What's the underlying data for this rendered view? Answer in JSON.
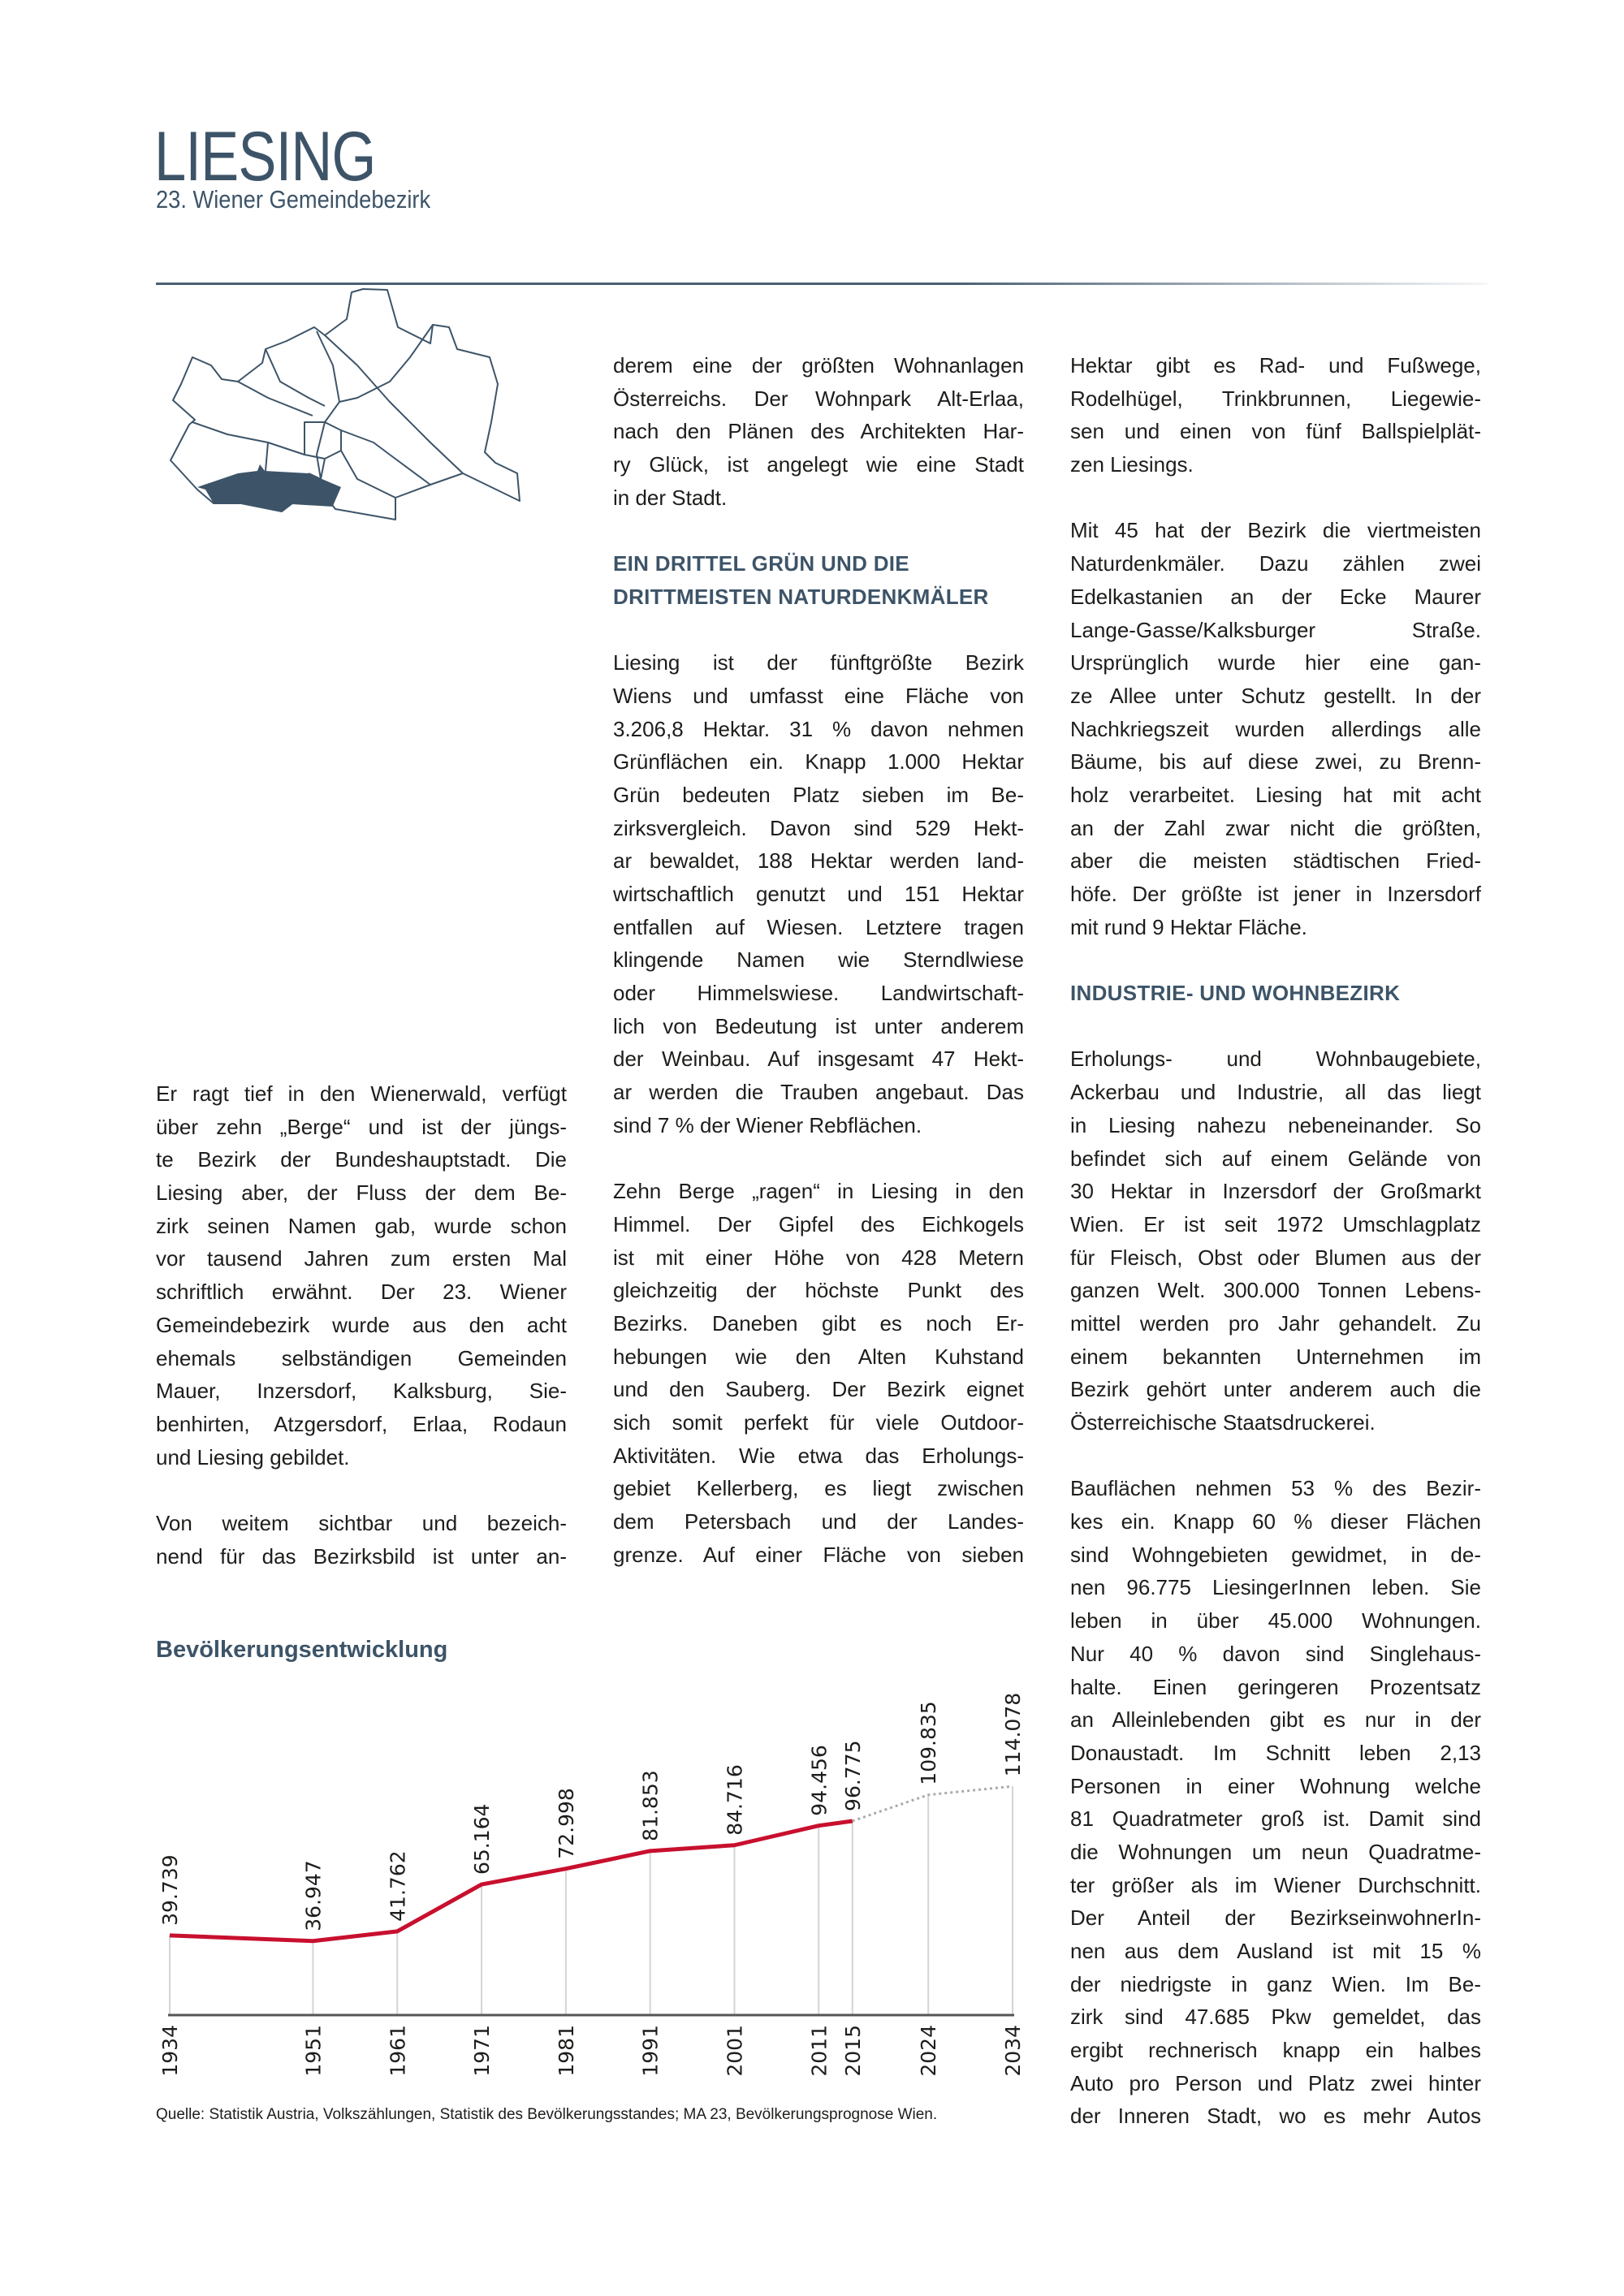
{
  "header": {
    "title": "LIESING",
    "subtitle": "23. Wiener Gemeindebezirk"
  },
  "colors": {
    "accent": "#3d5468",
    "line": "#c8102e",
    "projection": "#aaaaaa",
    "map_highlight": "#3d5468"
  },
  "columns": [
    {
      "blocks": [
        {
          "type": "para",
          "lines": [
            "Er ragt tief in den Wienerwald, verfügt",
            "über zehn „Berge“ und ist der jüngs-",
            "te Bezirk der Bundeshauptstadt. Die",
            "Liesing aber, der Fluss der dem Be-",
            "zirk seinen Namen gab, wurde schon",
            "vor tausend Jahren zum ersten Mal",
            "schriftlich erwähnt. Der 23. Wiener",
            "Gemeindebezirk wurde aus den acht",
            "ehemals selbständigen Gemeinden",
            "Mauer, Inzersdorf, Kalksburg, Sie-",
            "benhirten, Atzgersdorf, Erlaa, Rodaun",
            "und Liesing gebildet."
          ]
        },
        {
          "type": "para",
          "lines": [
            "Von weitem sichtbar und bezeich-",
            "nend für das Bezirksbild ist unter an-"
          ]
        }
      ]
    },
    {
      "blocks": [
        {
          "type": "para",
          "lines": [
            "derem eine der größten Wohnanlagen",
            "Österreichs. Der Wohnpark Alt-Erlaa,",
            "nach den Plänen des Architekten Har-",
            "ry Glück, ist angelegt wie eine Stadt",
            "in der Stadt."
          ]
        },
        {
          "type": "heading",
          "lines": [
            "EIN DRITTEL GRÜN UND DIE",
            "DRITTMEISTEN NATURDENKMÄLER"
          ]
        },
        {
          "type": "para",
          "lines": [
            "Liesing ist der fünftgrößte Bezirk",
            "Wiens und umfasst eine Fläche von",
            "3.206,8 Hektar. 31 % davon nehmen",
            "Grünflächen ein. Knapp 1.000 Hektar",
            "Grün bedeuten Platz sieben im Be-",
            "zirksvergleich. Davon sind 529 Hekt-",
            "ar bewaldet, 188 Hektar werden land-",
            "wirtschaftlich genutzt und 151 Hektar",
            "entfallen auf Wiesen. Letztere tragen",
            "klingende Namen wie Sterndlwiese",
            "oder Himmelswiese. Landwirtschaft-",
            "lich von Bedeutung ist unter anderem",
            "der Weinbau. Auf insgesamt 47 Hekt-",
            "ar werden die Trauben angebaut. Das",
            "sind 7 % der Wiener Rebflächen."
          ]
        },
        {
          "type": "para",
          "lines": [
            "Zehn Berge „ragen“ in Liesing in den",
            "Himmel. Der Gipfel des Eichkogels",
            "ist mit einer Höhe von 428 Metern",
            "gleichzeitig der höchste Punkt des",
            "Bezirks. Daneben gibt es noch Er-",
            "hebungen wie den Alten Kuhstand",
            "und den Sauberg. Der Bezirk eignet",
            "sich somit perfekt für viele Outdoor-",
            "Aktivitäten. Wie etwa das Erholungs-",
            "gebiet Kellerberg, es liegt zwischen",
            "dem Petersbach und der Landes-",
            "grenze. Auf einer Fläche von sieben"
          ]
        }
      ]
    },
    {
      "blocks": [
        {
          "type": "para",
          "lines": [
            "Hektar gibt es Rad- und Fußwege,",
            "Rodelhügel, Trinkbrunnen, Liegewie-",
            "sen und einen von fünf Ballspielplät-",
            "zen Liesings."
          ]
        },
        {
          "type": "para",
          "lines": [
            "Mit 45 hat der Bezirk die viertmeisten",
            "Naturdenkmäler. Dazu zählen zwei",
            "Edelkastanien an der Ecke Maurer",
            "Lange-Gasse/Kalksburger Straße.",
            "Ursprünglich wurde hier eine gan-",
            "ze Allee unter Schutz gestellt. In der",
            "Nachkriegszeit wurden allerdings alle",
            "Bäume, bis auf diese zwei, zu Brenn-",
            "holz verarbeitet. Liesing hat mit acht",
            "an der Zahl zwar nicht die größten,",
            "aber die meisten städtischen Fried-",
            "höfe. Der größte ist jener in Inzersdorf",
            "mit rund 9 Hektar Fläche."
          ]
        },
        {
          "type": "heading",
          "lines": [
            "INDUSTRIE- UND WOHNBEZIRK"
          ]
        },
        {
          "type": "para",
          "lines": [
            "Erholungs- und Wohnbaugebiete,",
            "Ackerbau und Industrie, all das liegt",
            "in Liesing nahezu nebeneinander. So",
            "befindet sich auf einem Gelände von",
            "30 Hektar in Inzersdorf der Großmarkt",
            "Wien. Er ist seit 1972 Umschlagplatz",
            "für Fleisch, Obst oder Blumen aus der",
            "ganzen Welt. 300.000 Tonnen Lebens-",
            "mittel werden pro Jahr gehandelt. Zu",
            "einem bekannten Unternehmen im",
            "Bezirk gehört unter anderem auch die",
            "Österreichische Staatsdruckerei."
          ]
        },
        {
          "type": "para",
          "lines": [
            "Bauflächen nehmen 53 % des Bezir-",
            "kes ein. Knapp 60 % dieser Flächen",
            "sind Wohngebieten gewidmet, in de-",
            "nen 96.775 LiesingerInnen leben. Sie",
            "leben in über 45.000 Wohnungen.",
            "Nur 40 % davon sind Singlehaus-",
            "halte. Einen geringeren Prozentsatz",
            "an Alleinlebenden gibt es nur in der",
            "Donaustadt. Im Schnitt leben 2,13",
            "Personen in einer Wohnung welche",
            "81 Quadratmeter groß ist. Damit sind",
            "die Wohnungen um neun Quadratme-",
            "ter größer als im Wiener Durchschnitt.",
            "Der Anteil der BezirkseinwohnerIn-",
            "nen aus dem Ausland ist mit 15 %",
            "der niedrigste in ganz Wien. Im Be-",
            "zirk sind 47.685 Pkw gemeldet, das",
            "ergibt rechnerisch knapp ein halbes",
            "Auto pro Person und Platz zwei hinter",
            "der Inneren Stadt, wo es mehr Autos"
          ]
        }
      ]
    }
  ],
  "chart_data": {
    "type": "line",
    "title": "Bevölkerungsentwicklung",
    "x": [
      1934,
      1951,
      1961,
      1971,
      1981,
      1991,
      2001,
      2011,
      2015,
      2024,
      2034
    ],
    "x_labels": [
      "1934",
      "1951",
      "1961",
      "1971",
      "1981",
      "1991",
      "2001",
      "2011",
      "2015",
      "2024",
      "2034"
    ],
    "values": [
      39739,
      36947,
      41762,
      65164,
      72998,
      81853,
      84716,
      94456,
      96775,
      109835,
      114078
    ],
    "data_labels": [
      "39.739",
      "36.947",
      "41.762",
      "65.164",
      "72.998",
      "81.853",
      "84.716",
      "94.456",
      "96.775",
      "109.835",
      "114.078"
    ],
    "projected_from": 2015,
    "ylim": [
      0,
      120000
    ],
    "grid": "vertical lines at each year",
    "legend": "none",
    "source": "Quelle: Statistik Austria, Volkszählungen, Statistik des Bevölkerungsstandes; MA 23, Bevölkerungsprognose Wien."
  }
}
